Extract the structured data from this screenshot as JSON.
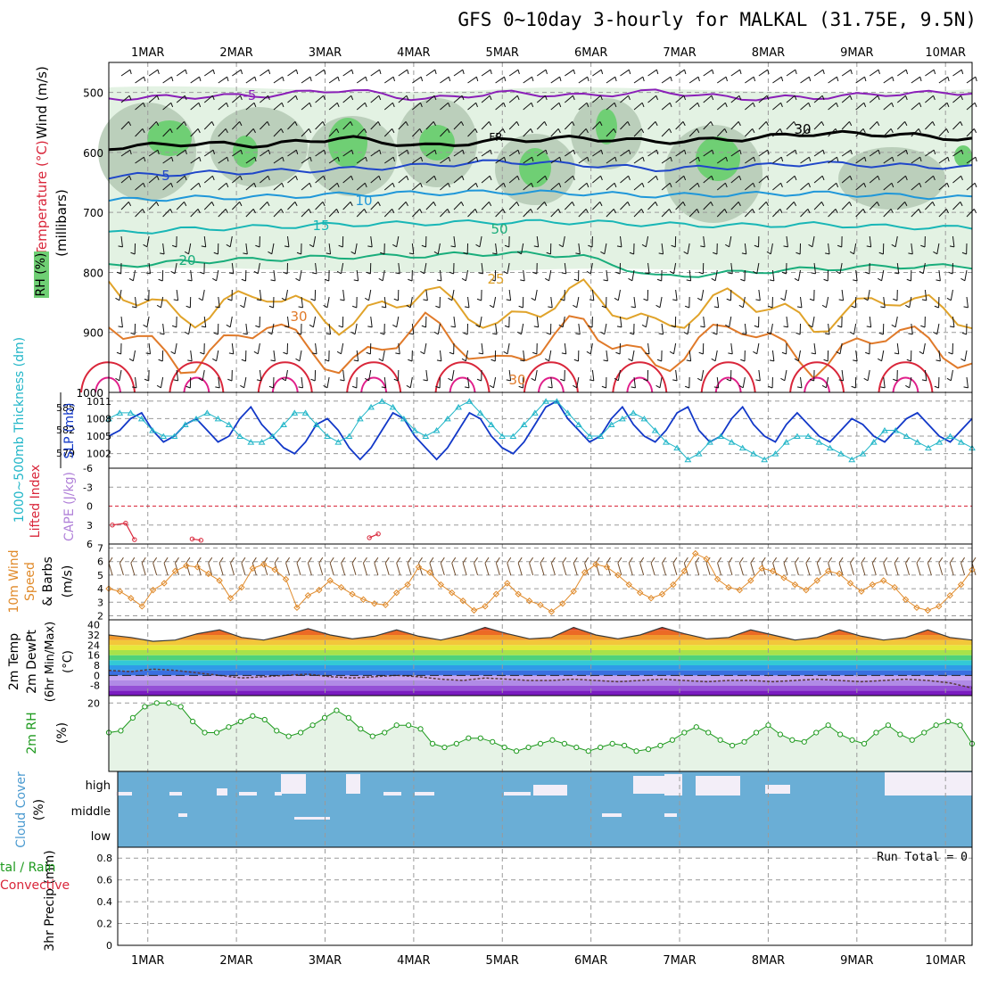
{
  "title": "GFS 0~10day 3-hourly for MALKAL (31.75E, 9.5N)",
  "x_axis": {
    "day_labels": [
      "1MAR",
      "2MAR",
      "3MAR",
      "4MAR",
      "5MAR",
      "6MAR",
      "7MAR",
      "8MAR",
      "9MAR",
      "10MAR"
    ],
    "range_days": [
      0.56,
      10.3
    ]
  },
  "colors": {
    "rh_light": "#e3f2e3",
    "rh_mid": "#b4c9b4",
    "rh_green": "#6fcf74",
    "iso_purple": "#8a1fb8",
    "iso_blue": "#1f46c9",
    "iso_lblue": "#1f97d9",
    "iso_cyan": "#18b6b6",
    "iso_green": "#19ad7b",
    "iso_orange": "#e0a32a",
    "iso_dorange": "#e07a2a",
    "iso_red": "#d9263a",
    "iso_pink": "#e01f8a",
    "slp": "#1238c8",
    "thick": "#22b6c8",
    "li": "#d9263a",
    "wind": "#e08a2a",
    "rh2m": "#1e9a1e",
    "cloud": "#6aaed6",
    "cloud_gap": "#f3eef8"
  },
  "chart_data": [
    {
      "id": "upper",
      "type": "contour",
      "ylabel_parts": [
        "Wind (m/s)",
        "Temperature (°C)",
        "RH (%)",
        "(millibars)"
      ],
      "yticks": [
        500,
        600,
        700,
        800,
        900,
        1000
      ],
      "ylim": [
        1000,
        450
      ],
      "isotherms": [
        {
          "label": "-5",
          "p": [
            510,
            507,
            505,
            495,
            512,
            500,
            506,
            498,
            510,
            508,
            502,
            500
          ]
        },
        {
          "label": "FR",
          "p": [
            592,
            585,
            588,
            575,
            590,
            580,
            576,
            582,
            578,
            568,
            570,
            578
          ]
        },
        {
          "label": "5",
          "p": [
            640,
            635,
            632,
            628,
            622,
            615,
            620,
            628,
            624,
            618,
            622,
            625
          ]
        },
        {
          "label": "10",
          "p": [
            680,
            676,
            674,
            670,
            668,
            666,
            668,
            672,
            670,
            668,
            672,
            676
          ]
        },
        {
          "label": "15",
          "p": [
            735,
            728,
            724,
            720,
            718,
            716,
            716,
            720,
            722,
            720,
            724,
            726
          ]
        },
        {
          "label": "20",
          "p": [
            790,
            782,
            778,
            774,
            772,
            768,
            772,
            808,
            800,
            794,
            790,
            790
          ]
        },
        {
          "label": "25",
          "p": [
            820,
            880,
            830,
            890,
            828,
            892,
            826,
            895,
            834,
            890,
            836,
            880
          ]
        },
        {
          "label": "30",
          "p": [
            880,
            960,
            880,
            965,
            880,
            960,
            880,
            960,
            880,
            960,
            890,
            955
          ]
        }
      ],
      "contour_labels": [
        "-5",
        "FR",
        "5",
        "10",
        "15",
        "20",
        "25",
        "30",
        "50",
        "30",
        "30"
      ]
    },
    {
      "id": "thick_slp",
      "type": "line",
      "ylabel_left": "1000~500mb Thickness (dm)",
      "ylabel_right": "SLP (mb)",
      "thick_ticks": [
        585,
        582,
        579
      ],
      "slp_ticks": [
        1011,
        1008,
        1005,
        1002
      ],
      "slp_lim": [
        999.5,
        1012.5
      ],
      "slp": [
        1005,
        1006,
        1008,
        1009,
        1006,
        1004,
        1005,
        1007,
        1008,
        1006,
        1004,
        1005,
        1008,
        1010,
        1007,
        1005,
        1003,
        1002,
        1004,
        1007,
        1008,
        1006,
        1003,
        1001,
        1003,
        1006,
        1009,
        1008,
        1005,
        1003,
        1001,
        1003,
        1006,
        1009,
        1008,
        1005,
        1003,
        1002,
        1004,
        1007,
        1010,
        1011,
        1008,
        1006,
        1004,
        1005,
        1008,
        1010,
        1007,
        1005,
        1004,
        1006,
        1009,
        1010,
        1006,
        1004,
        1005,
        1008,
        1010,
        1007,
        1005,
        1004,
        1007,
        1009,
        1007,
        1005,
        1004,
        1006,
        1008,
        1007,
        1005,
        1004,
        1006,
        1008,
        1009,
        1007,
        1005,
        1004,
        1006,
        1008
      ],
      "thickness": [
        1008,
        1009,
        1009,
        1008,
        1006,
        1005,
        1005,
        1007,
        1008,
        1009,
        1008,
        1007,
        1005,
        1004,
        1004,
        1005,
        1007,
        1009,
        1009,
        1007,
        1005,
        1004,
        1005,
        1008,
        1010,
        1011,
        1010,
        1008,
        1006,
        1005,
        1006,
        1008,
        1010,
        1011,
        1009,
        1007,
        1005,
        1005,
        1007,
        1009,
        1011,
        1011,
        1009,
        1007,
        1005,
        1005,
        1007,
        1008,
        1009,
        1008,
        1006,
        1004,
        1003,
        1001,
        1002,
        1004,
        1005,
        1004,
        1003,
        1002,
        1001,
        1002,
        1004,
        1005,
        1005,
        1004,
        1003,
        1002,
        1001,
        1002,
        1004,
        1006,
        1006,
        1005,
        1004,
        1003,
        1004,
        1005,
        1004,
        1003
      ]
    },
    {
      "id": "li_cape",
      "type": "line",
      "ylabel_left": "Lifted Index",
      "ylabel_right": "CAPE (J/kg)",
      "yticks": [
        -6,
        -3,
        0,
        3,
        6
      ],
      "ylim": [
        6,
        -6
      ],
      "segments": [
        {
          "x": [
            0.6,
            0.75,
            0.85
          ],
          "y": [
            3.0,
            2.7,
            5.3
          ]
        },
        {
          "x": [
            1.5,
            1.6
          ],
          "y": [
            5.2,
            5.4
          ]
        },
        {
          "x": [
            3.5,
            3.6
          ],
          "y": [
            5.0,
            4.4
          ]
        }
      ]
    },
    {
      "id": "wind10",
      "type": "line",
      "ylabel": [
        "10m Wind",
        "Speed",
        "& Barbs",
        "(m/s)"
      ],
      "yticks": [
        2,
        3,
        4,
        5,
        6,
        7
      ],
      "ylim": [
        1.7,
        7.3
      ],
      "values": [
        4.0,
        3.8,
        3.3,
        2.7,
        3.9,
        4.4,
        5.3,
        5.7,
        5.6,
        5.1,
        4.6,
        3.3,
        4.1,
        5.5,
        5.8,
        5.4,
        4.7,
        2.6,
        3.5,
        3.9,
        4.6,
        4.1,
        3.6,
        3.2,
        2.9,
        2.8,
        3.7,
        4.3,
        5.6,
        5.2,
        4.3,
        3.7,
        3.1,
        2.4,
        2.7,
        3.6,
        4.4,
        3.6,
        3.1,
        2.8,
        2.3,
        2.9,
        3.8,
        5.2,
        5.8,
        5.6,
        5.0,
        4.3,
        3.7,
        3.3,
        3.6,
        4.3,
        5.3,
        6.6,
        6.2,
        4.7,
        4.1,
        3.9,
        4.6,
        5.5,
        5.3,
        4.8,
        4.3,
        3.9,
        4.6,
        5.3,
        5.1,
        4.4,
        3.8,
        4.3,
        4.6,
        4.1,
        3.2,
        2.6,
        2.4,
        2.7,
        3.5,
        4.3,
        5.4
      ]
    },
    {
      "id": "temp2m",
      "type": "area",
      "ylabel": [
        "2m Temp",
        "2m DewPt",
        "(6hr Min/Max)",
        "(°C)"
      ],
      "yticks": [
        40,
        32,
        24,
        16,
        8,
        0,
        -8
      ],
      "ylim": [
        -16,
        44
      ],
      "band_colors": [
        "#7a1cc0",
        "#9450d6",
        "#b08be6",
        "#c8a6f0",
        "#3a6fe0",
        "#2f9be8",
        "#33c9d6",
        "#4fd27a",
        "#a8e24a",
        "#e6e83a",
        "#f3c73a",
        "#f09a2e",
        "#ec6a25",
        "#e03a1e",
        "#b4181a",
        "#7e0e12"
      ],
      "temp": [
        32,
        30,
        27,
        28,
        33,
        36,
        30,
        28,
        32,
        37,
        32,
        29,
        31,
        36,
        31,
        28,
        32,
        38,
        33,
        29,
        30,
        38,
        32,
        29,
        32,
        38,
        33,
        29,
        30,
        36,
        32,
        28,
        30,
        36,
        31,
        28,
        30,
        36,
        30,
        28
      ],
      "dewpt": [
        4,
        3,
        5,
        4,
        2,
        0,
        -2,
        -1,
        0,
        1,
        -1,
        -2,
        -1,
        0,
        -1,
        -3,
        -4,
        -2,
        -3,
        -4,
        -4,
        -3,
        -4,
        -5,
        -4,
        -3,
        -4,
        -5,
        -4,
        -4,
        -5,
        -4,
        -3,
        -4,
        -5,
        -4,
        -3,
        -4,
        -6,
        -10
      ]
    },
    {
      "id": "rh2m",
      "type": "area",
      "ylabel": [
        "2m RH",
        "(%)"
      ],
      "yticks": [
        20
      ],
      "ylim": [
        -17,
        24
      ],
      "values": [
        4,
        5,
        12,
        18,
        20,
        20,
        18,
        10,
        4,
        4,
        7,
        10,
        13,
        11,
        5,
        2,
        4,
        8,
        12,
        16,
        12,
        6,
        2,
        4,
        8,
        8,
        6,
        -2,
        -4,
        -2,
        1,
        1,
        -1,
        -4,
        -6,
        -4,
        -2,
        0,
        -2,
        -4,
        -6,
        -4,
        -2,
        -3,
        -6,
        -5,
        -3,
        0,
        4,
        7,
        4,
        0,
        -3,
        -1,
        4,
        8,
        3,
        0,
        -1,
        4,
        8,
        3,
        0,
        -2,
        4,
        8,
        3,
        0,
        4,
        8,
        10,
        8,
        -2
      ]
    },
    {
      "id": "cloud",
      "type": "heatmap",
      "ylabel": [
        "Cloud Cover",
        "(%)"
      ],
      "levels": [
        "high",
        "middle",
        "low"
      ]
    },
    {
      "id": "precip",
      "type": "bar",
      "ylabel": [
        "3hr Precip (mm)"
      ],
      "ylabel_left": [
        "tal / Rain",
        "Convective"
      ],
      "yticks": [
        0,
        0.2,
        0.4,
        0.6,
        0.8
      ],
      "ylim": [
        0,
        0.9
      ],
      "run_total": "Run Total = 0",
      "values": []
    }
  ]
}
